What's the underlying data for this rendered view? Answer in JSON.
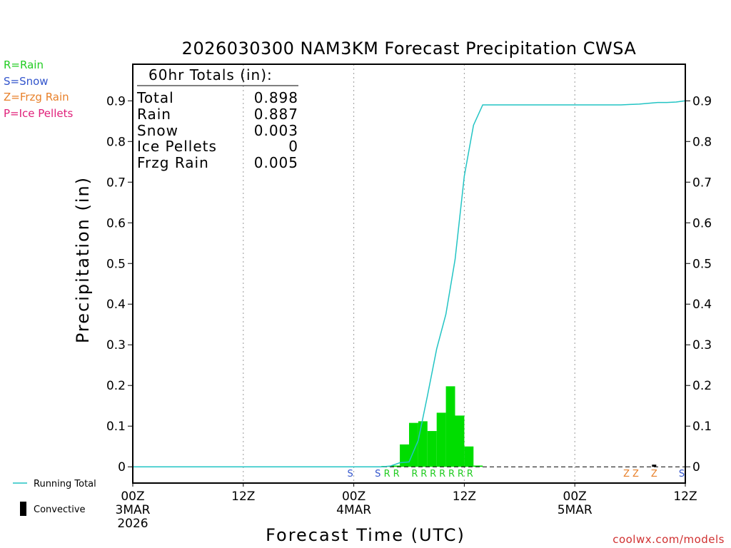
{
  "chart_data": {
    "type": "bar",
    "title": "2026030300 NAM3KM Forecast Precipitation CWSA",
    "xlabel": "Forecast Time (UTC)",
    "ylabel": "Precipitation (in)",
    "xlim_hours": [
      0,
      60
    ],
    "ylim": [
      -0.04,
      0.99
    ],
    "y_ticks": [
      0,
      0.1,
      0.2,
      0.3,
      0.4,
      0.5,
      0.6,
      0.7,
      0.8,
      0.9
    ],
    "y_tick_labels": [
      "0",
      "0.1",
      "0.2",
      "0.3",
      "0.4",
      "0.5",
      "0.6",
      "0.7",
      "0.8",
      "0.9"
    ],
    "x_ticks": [
      {
        "hour": 0,
        "label": "00Z",
        "date": "3MAR",
        "year": "2026"
      },
      {
        "hour": 12,
        "label": "12Z",
        "date": "",
        "year": ""
      },
      {
        "hour": 24,
        "label": "00Z",
        "date": "4MAR",
        "year": ""
      },
      {
        "hour": 36,
        "label": "12Z",
        "date": "",
        "year": ""
      },
      {
        "hour": 48,
        "label": "00Z",
        "date": "5MAR",
        "year": ""
      },
      {
        "hour": 60,
        "label": "12Z",
        "date": "",
        "year": ""
      }
    ],
    "grid_hours": [
      12,
      24,
      36,
      48
    ],
    "hourly_bars": {
      "hours": [
        28,
        29,
        30,
        31,
        32,
        33,
        34,
        35,
        36,
        37,
        38
      ],
      "values": [
        0.002,
        0.003,
        0.055,
        0.108,
        0.112,
        0.088,
        0.133,
        0.198,
        0.126,
        0.05,
        0.003
      ],
      "color": "#00dd00"
    },
    "running_total": {
      "name": "Running Total",
      "color": "#22c4c4",
      "hours": [
        0,
        27,
        28,
        29,
        30,
        31,
        32,
        33,
        34,
        35,
        36,
        37,
        38,
        48,
        53,
        54,
        55,
        56,
        57,
        58,
        59,
        60
      ],
      "values": [
        0,
        0,
        0.002,
        0.01,
        0.012,
        0.065,
        0.175,
        0.29,
        0.375,
        0.51,
        0.715,
        0.84,
        0.89,
        0.89,
        0.89,
        0.891,
        0.892,
        0.894,
        0.896,
        0.896,
        0.897,
        0.9
      ]
    },
    "ptype_markers": [
      {
        "hour": 24,
        "code": "S"
      },
      {
        "hour": 27,
        "code": "S"
      },
      {
        "hour": 28,
        "code": "R"
      },
      {
        "hour": 29,
        "code": "R"
      },
      {
        "hour": 31,
        "code": "R"
      },
      {
        "hour": 32,
        "code": "R"
      },
      {
        "hour": 33,
        "code": "R"
      },
      {
        "hour": 34,
        "code": "R"
      },
      {
        "hour": 35,
        "code": "R"
      },
      {
        "hour": 36,
        "code": "R"
      },
      {
        "hour": 37,
        "code": "R"
      },
      {
        "hour": 54,
        "code": "Z"
      },
      {
        "hour": 55,
        "code": "Z"
      },
      {
        "hour": 57,
        "code": "Z"
      },
      {
        "hour": 60,
        "code": "S"
      }
    ],
    "ptype_colors": {
      "R": "#22cc22",
      "S": "#3355cc",
      "Z": "#e8802a",
      "P": "#e0207a"
    },
    "small_tick_hours": [
      57
    ],
    "totals_box": {
      "header": "60hr Totals (in):",
      "rows": [
        {
          "label": "Total",
          "value": "0.898"
        },
        {
          "label": "Rain",
          "value": "0.887"
        },
        {
          "label": "Snow",
          "value": "0.003"
        },
        {
          "label": "Ice Pellets",
          "value": "0"
        },
        {
          "label": "Frzg Rain",
          "value": "0.005"
        }
      ]
    }
  },
  "ptype_legend": [
    {
      "code": "R",
      "text": "R=Rain",
      "color": "#22cc22"
    },
    {
      "code": "S",
      "text": "S=Snow",
      "color": "#3355cc"
    },
    {
      "code": "Z",
      "text": "Z=Frzg Rain",
      "color": "#e8802a"
    },
    {
      "code": "P",
      "text": "P=Ice Pellets",
      "color": "#e0207a"
    }
  ],
  "bottom_legend": {
    "running_total_label": "Running Total",
    "running_total_color": "#22c4c4",
    "convective_label": "Convective",
    "convective_color": "#000000"
  },
  "credit": {
    "text": "coolwx.com/models",
    "color": "#d03030"
  }
}
